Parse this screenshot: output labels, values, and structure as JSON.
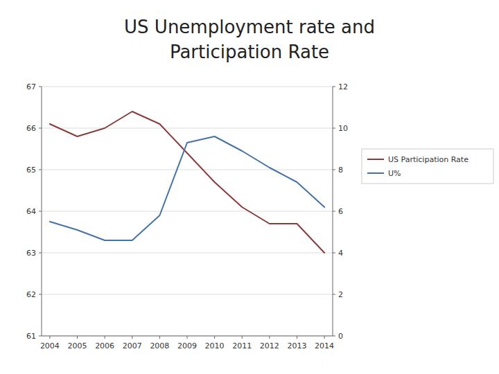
{
  "chart_data": {
    "type": "line",
    "title": "US Unemployment rate and\nParticipation Rate",
    "x": [
      2004,
      2005,
      2006,
      2007,
      2008,
      2009,
      2010,
      2011,
      2012,
      2013,
      2014
    ],
    "xlim": [
      2003.7,
      2014.3
    ],
    "xticks": [
      2004,
      2005,
      2006,
      2007,
      2008,
      2009,
      2010,
      2011,
      2012,
      2013,
      2014
    ],
    "series": [
      {
        "name": "US Participation Rate",
        "color": "#8B3A3A",
        "values": [
          66.1,
          65.8,
          66.0,
          66.4,
          66.1,
          65.4,
          64.7,
          64.1,
          63.7,
          63.7,
          63.0
        ]
      },
      {
        "name": "U%",
        "color": "#4472A8",
        "axis": "y2",
        "values": [
          5.5,
          5.1,
          4.6,
          4.6,
          5.8,
          9.3,
          9.6,
          8.9,
          8.1,
          7.4,
          6.2
        ]
      }
    ],
    "ylim": [
      61,
      67
    ],
    "yticks": [
      61,
      62,
      63,
      64,
      65,
      66,
      67
    ],
    "y2lim": [
      0,
      12
    ],
    "y2ticks": [
      0,
      2,
      4,
      6,
      8,
      10,
      12
    ],
    "grid": true,
    "legend": "right"
  }
}
